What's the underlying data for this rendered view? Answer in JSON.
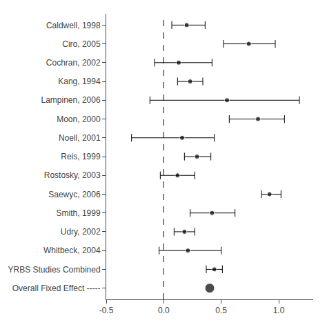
{
  "chart_data": {
    "type": "forest",
    "categories": [
      "Caldwell, 1998",
      "Ciro, 2005",
      "Cochran, 2002",
      "Kang, 1994",
      "Lampinen, 2006",
      "Moon, 2000",
      "Noell, 2001",
      "Reis, 1999",
      "Rostosky, 2003",
      "Saewyc, 2006",
      "Smith, 1999",
      "Udry, 2002",
      "Whitbeck, 2004",
      "YRBS Studies Combined",
      "Overall Fixed Effect -----"
    ],
    "values": [
      0.2,
      0.74,
      0.13,
      0.23,
      0.55,
      0.82,
      0.16,
      0.29,
      0.12,
      0.92,
      0.42,
      0.18,
      0.21,
      0.44,
      0.4
    ],
    "ci_low": [
      0.07,
      0.52,
      -0.08,
      0.12,
      -0.12,
      0.57,
      -0.28,
      0.18,
      -0.03,
      0.85,
      0.23,
      0.09,
      -0.04,
      0.37,
      null
    ],
    "ci_high": [
      0.36,
      0.97,
      0.42,
      0.34,
      1.18,
      1.05,
      0.44,
      0.41,
      0.27,
      1.02,
      0.62,
      0.27,
      0.5,
      0.51,
      null
    ],
    "reference_x": 0.0,
    "xlim": [
      -0.5,
      1.3
    ],
    "xticks": [
      -0.5,
      {
        "value": 0,
        "label": "0.0"
      },
      0.5,
      {
        "value": 1,
        "label": "1.0"
      }
    ],
    "color": "#000000",
    "grid": false
  }
}
